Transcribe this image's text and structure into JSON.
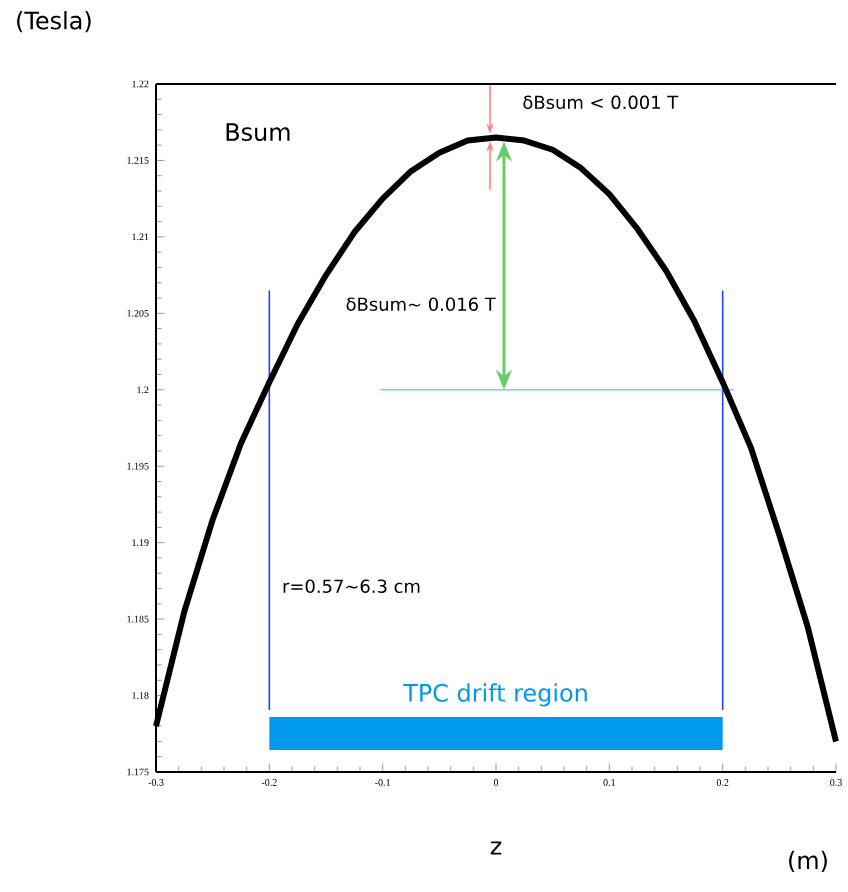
{
  "chart_data": {
    "type": "line",
    "ylabel": "(Tesla)",
    "xlabel": "z",
    "x": [
      -0.3,
      -0.275,
      -0.25,
      -0.225,
      -0.2,
      -0.175,
      -0.15,
      -0.125,
      -0.1,
      -0.075,
      -0.05,
      -0.025,
      0,
      0.025,
      0.05,
      0.075,
      0.1,
      0.125,
      0.15,
      0.175,
      0.2,
      0.225,
      0.25,
      0.275,
      0.3
    ],
    "series": [
      {
        "color": "#000000",
        "values": [
          1.178,
          1.1855,
          1.1915,
          1.1965,
          1.2005,
          1.2043,
          1.2075,
          1.2103,
          1.2125,
          1.2143,
          1.2155,
          1.2163,
          1.2165,
          1.2163,
          1.2157,
          1.2145,
          1.2128,
          1.2105,
          1.2078,
          1.2045,
          1.2005,
          1.1962,
          1.1905,
          1.1845,
          1.177
        ]
      }
    ],
    "xlim": [
      -0.3,
      0.3
    ],
    "ylim": [
      1.175,
      1.22
    ],
    "xticks": [
      -0.3,
      -0.2,
      -0.1,
      0,
      0.1,
      0.2,
      0.3
    ],
    "yticks": [
      1.175,
      1.18,
      1.185,
      1.19,
      1.195,
      1.2,
      1.205,
      1.21,
      1.215,
      1.22
    ],
    "ref_lines": [
      {
        "axis": "x",
        "value": -0.2,
        "color": "#2244ff"
      },
      {
        "axis": "x",
        "value": 0.2,
        "color": "#2244ff"
      },
      {
        "axis": "y",
        "value": 1.2,
        "color": "#77ccff"
      }
    ],
    "bands": [
      {
        "axis": "x",
        "from": -0.2,
        "to": 0.2,
        "label": "TPC drift region",
        "color": "#0099ee"
      }
    ],
    "annotations": [
      "Bsum",
      {
        "text": "δBsum < 0.001 T",
        "x": 0,
        "y": 1.2165
      },
      "δBsum~ 0.016 T",
      "r=0.57~6.3 cm",
      "(m)"
    ],
    "marker": "none",
    "line_style": "solid"
  }
}
